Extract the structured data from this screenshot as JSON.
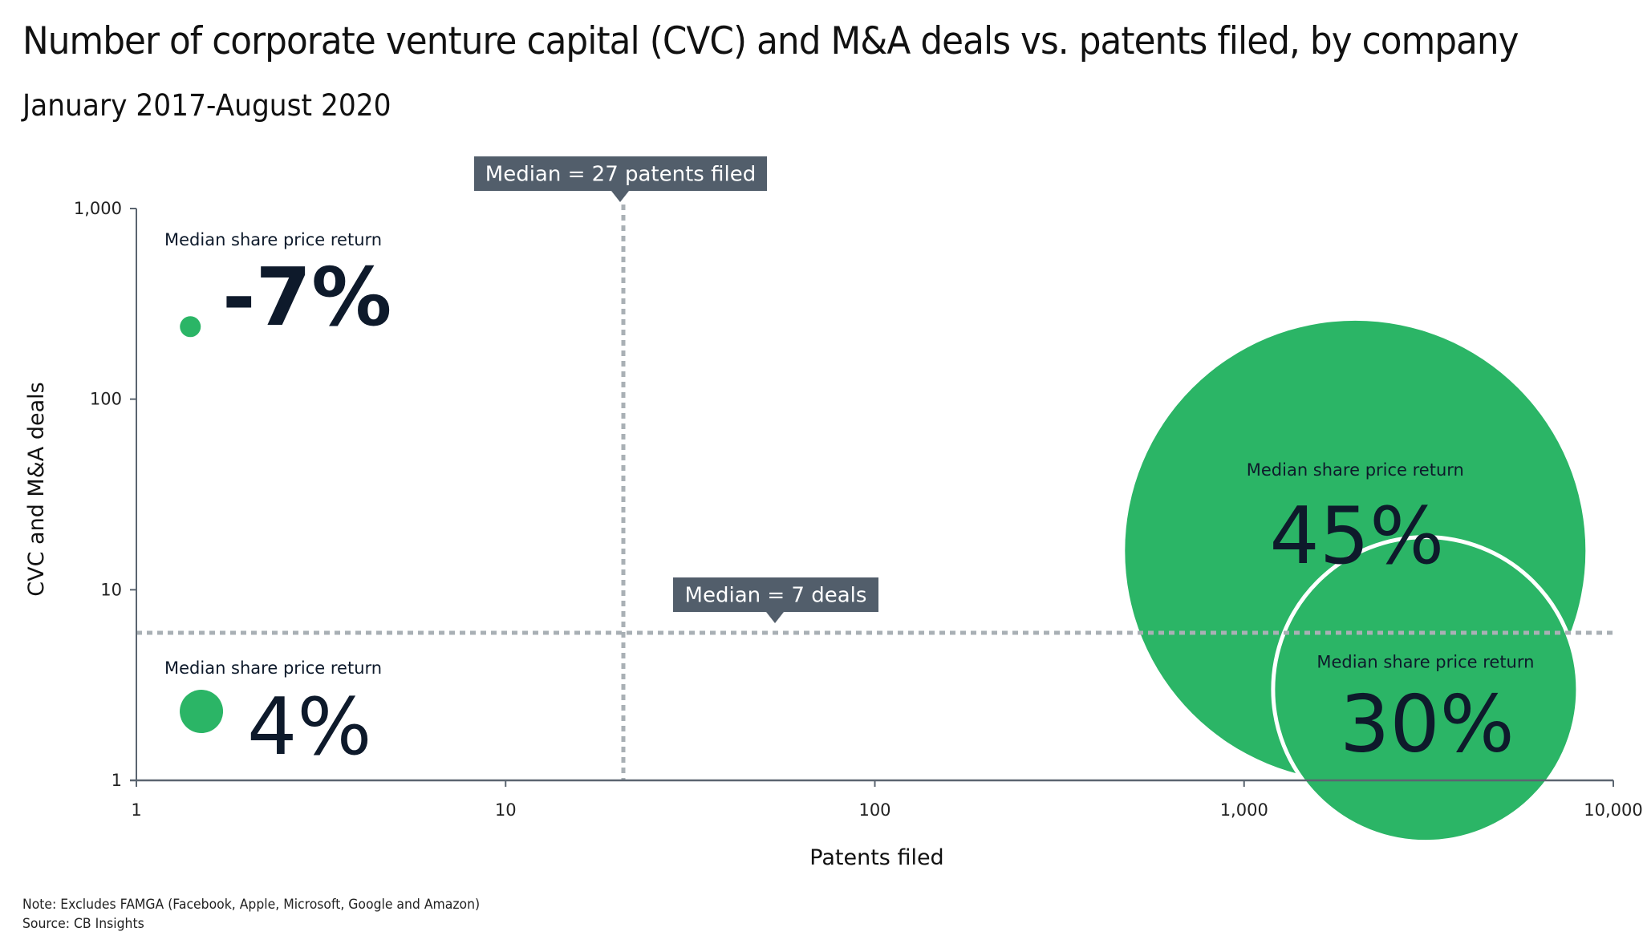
{
  "title": "Number of corporate venture capital (CVC) and M&A deals vs. patents filed, by company",
  "subtitle": "January 2017-August 2020",
  "footer": {
    "note": "Note: Excludes FAMGA (Facebook, Apple, Microsoft, Google and Amazon)",
    "source": "Source: CB Insights"
  },
  "colors": {
    "bubble": "#2bb566",
    "text": "#0e1a2b",
    "annotation_box": "#525e6b",
    "median_line": "#a9b0b5",
    "axis": "#5b6570"
  },
  "chart_data": {
    "type": "scatter",
    "title": "Number of corporate venture capital (CVC) and M&A deals vs. patents filed, by company",
    "subtitle": "January 2017-August 2020",
    "xlabel": "Patents filed",
    "ylabel": "CVC and M&A deals",
    "xscale": "log",
    "yscale": "log",
    "xlim": [
      1,
      10000
    ],
    "ylim": [
      1,
      1000
    ],
    "xticks": [
      1,
      10,
      100,
      1000,
      10000
    ],
    "xtick_labels": [
      "1",
      "10",
      "100",
      "1,000",
      "10,000"
    ],
    "yticks": [
      1,
      10,
      100,
      1000
    ],
    "ytick_labels": [
      "1",
      "10",
      "100",
      "1,000"
    ],
    "grid": false,
    "medians": {
      "x": {
        "value": 27,
        "label": "Median = 27 patents filed"
      },
      "y": {
        "value": 7,
        "label": "Median = 7 deals"
      }
    },
    "series_label": "Median share price return",
    "bubbles": [
      {
        "quadrant": "high-deals-low-patents",
        "return_label": "-7%",
        "return": -7,
        "size": "small",
        "x": 1.4,
        "y": 240,
        "label_pos": "left"
      },
      {
        "quadrant": "low-deals-low-patents",
        "return_label": "4%",
        "return": 4,
        "size": "medium",
        "x": 1.5,
        "y": 2.3,
        "label_pos": "left"
      },
      {
        "quadrant": "high-deals-high-patents",
        "return_label": "45%",
        "return": 45,
        "size": "largest",
        "x": 2000,
        "y": 16,
        "label_pos": "inside"
      },
      {
        "quadrant": "low-deals-high-patents",
        "return_label": "30%",
        "return": 30,
        "size": "large",
        "x": 3100,
        "y": 3.0,
        "label_pos": "inside"
      }
    ]
  }
}
